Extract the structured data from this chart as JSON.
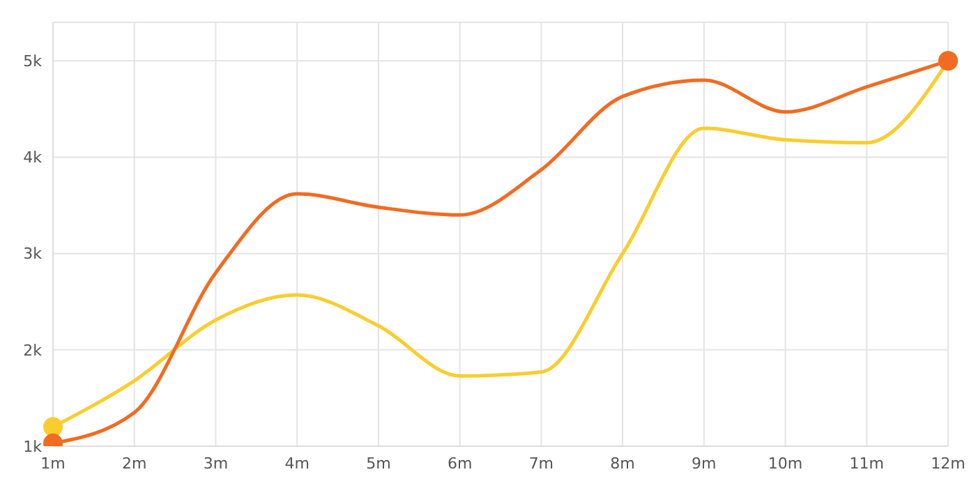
{
  "chart_data": {
    "type": "line",
    "categories": [
      "1m",
      "2m",
      "3m",
      "4m",
      "5m",
      "6m",
      "7m",
      "8m",
      "9m",
      "10m",
      "11m",
      "12m"
    ],
    "series": [
      {
        "color": "#f26b21",
        "values": [
          1030,
          1350,
          2800,
          3620,
          3480,
          3400,
          3870,
          4630,
          4800,
          4470,
          4730,
          5000
        ]
      },
      {
        "color": "#f9cd2d",
        "values": [
          1200,
          1680,
          2310,
          2570,
          2250,
          1730,
          1770,
          3000,
          4300,
          4180,
          4150,
          5000
        ]
      }
    ],
    "ylim": [
      1000,
      5400
    ],
    "yticks": [
      {
        "value": 1000,
        "label": "1k"
      },
      {
        "value": 2000,
        "label": "2k"
      },
      {
        "value": 3000,
        "label": "3k"
      },
      {
        "value": 4000,
        "label": "4k"
      },
      {
        "value": 5000,
        "label": "5k"
      }
    ],
    "grid": true,
    "line_style": "solid",
    "legend": false
  }
}
